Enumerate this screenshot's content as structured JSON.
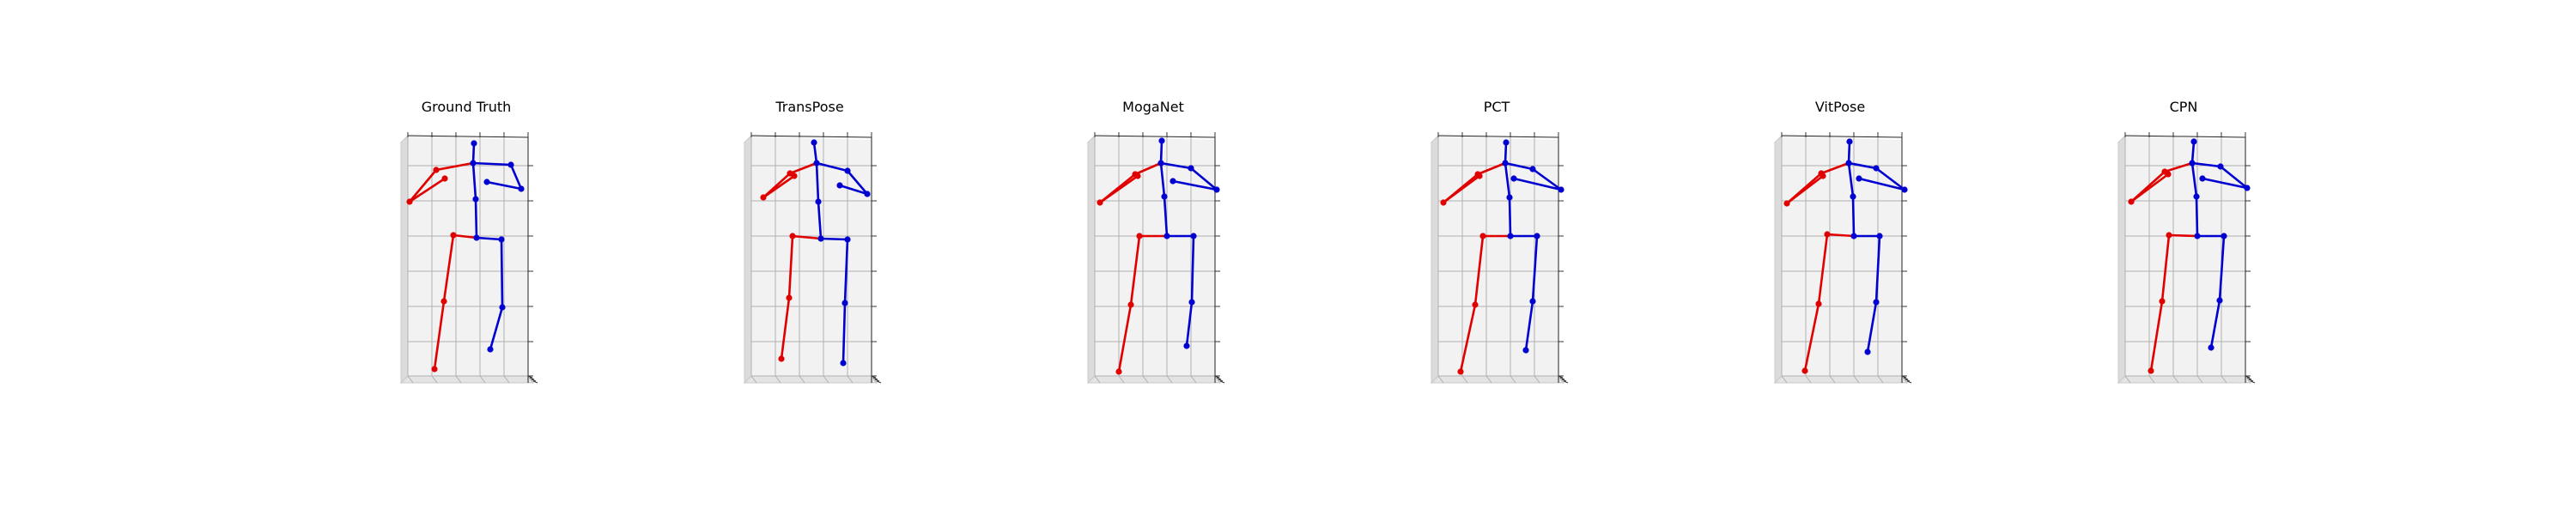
{
  "figure": {
    "panels": [
      {
        "title": "Ground Truth"
      },
      {
        "title": "TransPose"
      },
      {
        "title": "MogaNet"
      },
      {
        "title": "PCT"
      },
      {
        "title": "VitPose"
      },
      {
        "title": "CPN"
      }
    ],
    "colors": {
      "left_side": "#e00000",
      "right_side": "#0000d0",
      "pane_back": "#f2f2f2",
      "pane_side": "#dcdcdc",
      "pane_floor": "#e4e4e4",
      "grid": "#b0b0b0"
    }
  }
}
